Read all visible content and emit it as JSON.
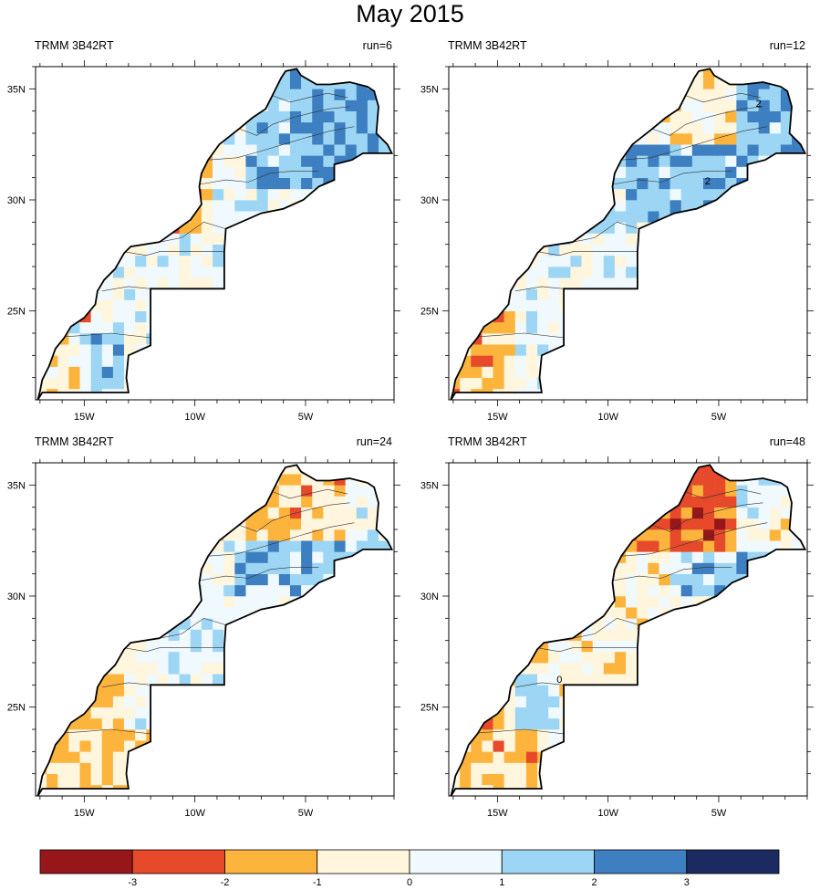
{
  "title": "May 2015",
  "map": {
    "lon_range": [
      -17.2,
      -1.0
    ],
    "lat_range": [
      21.0,
      36.0
    ],
    "lat_ticks": [
      {
        "value": 35,
        "label": "35N"
      },
      {
        "value": 30,
        "label": "30N"
      },
      {
        "value": 25,
        "label": "25N"
      }
    ],
    "lon_ticks": [
      {
        "value": -15,
        "label": "15W"
      },
      {
        "value": -10,
        "label": "10W"
      },
      {
        "value": -5,
        "label": "5W"
      }
    ]
  },
  "panels": [
    {
      "id": "p1",
      "left_label": "TRMM 3B42RT",
      "right_label": "run=6",
      "pattern": "north_blue_coast_orange",
      "contour_labels": []
    },
    {
      "id": "p2",
      "left_label": "TRMM 3B42RT",
      "right_label": "run=12",
      "pattern": "mostly_blue",
      "contour_labels": [
        "2",
        "2"
      ]
    },
    {
      "id": "p3",
      "left_label": "TRMM 3B42RT",
      "right_label": "run=24",
      "pattern": "mixed",
      "contour_labels": []
    },
    {
      "id": "p4",
      "left_label": "TRMM 3B42RT",
      "right_label": "run=48",
      "pattern": "north_red",
      "contour_labels": [
        "0"
      ]
    }
  ],
  "colorbar": {
    "colors": [
      "#97161a",
      "#e64a2b",
      "#fdb43d",
      "#fff6dd",
      "#f0f9fd",
      "#9dd6f4",
      "#3d7fc0",
      "#1b2b62"
    ],
    "labels": [
      "-3",
      "-2",
      "-1",
      "0",
      "1",
      "2",
      "3"
    ]
  }
}
